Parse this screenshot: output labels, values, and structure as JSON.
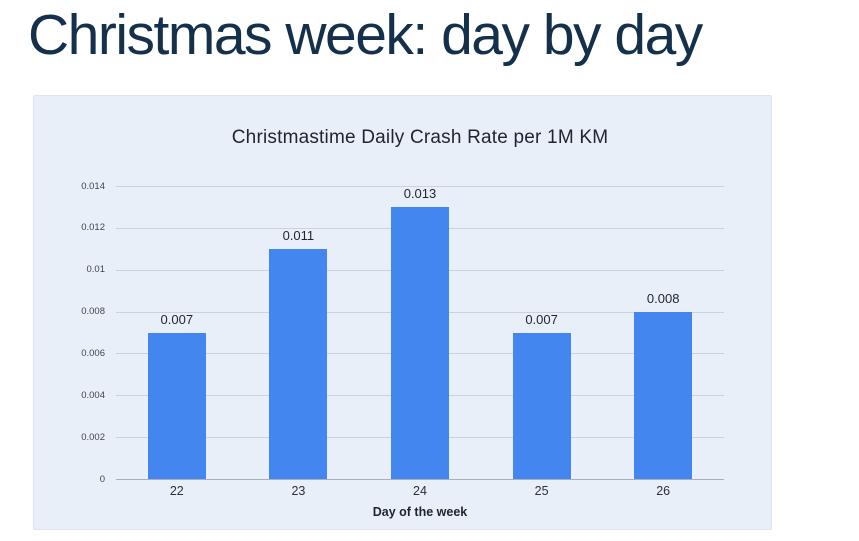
{
  "page": {
    "title": "Christmas week: day by day",
    "title_color": "#14304a",
    "background": "#ffffff"
  },
  "chart_data": {
    "type": "bar",
    "title": "Christmastime Daily Crash Rate per 1M KM",
    "xlabel": "Day of the week",
    "ylabel": "",
    "categories": [
      "22",
      "23",
      "24",
      "25",
      "26"
    ],
    "values": [
      0.007,
      0.011,
      0.013,
      0.007,
      0.008
    ],
    "data_labels": [
      "0.007",
      "0.011",
      "0.013",
      "0.007",
      "0.008"
    ],
    "ylim": [
      0,
      0.014
    ],
    "yticks": [
      "0",
      "0.002",
      "0.004",
      "0.006",
      "0.008",
      "0.01",
      "0.012",
      "0.014"
    ],
    "grid": true,
    "legend": "none",
    "bar_color": "#4486f0",
    "panel_background": "#e9eff8",
    "gridline_color": "#ccd1dc",
    "zero_line_color": "#aab0bb"
  }
}
